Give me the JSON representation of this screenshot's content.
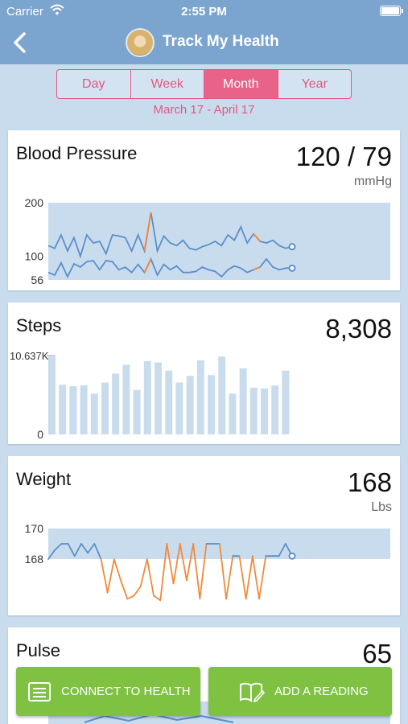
{
  "status_bar": {
    "carrier": "Carrier",
    "time": "2:55 PM"
  },
  "nav": {
    "title": "Track My Health"
  },
  "tabs": [
    {
      "label": "Day",
      "active": false
    },
    {
      "label": "Week",
      "active": false
    },
    {
      "label": "Month",
      "active": true
    },
    {
      "label": "Year",
      "active": false
    }
  ],
  "date_range": "March 17 - April 17",
  "colors": {
    "header": "#7ba4cf",
    "accent": "#e8628a",
    "line": "#5b8ec9",
    "highlight": "#f08a3c",
    "band": "#c9dcee",
    "button": "#7fc241"
  },
  "cards": {
    "blood_pressure": {
      "title": "Blood Pressure",
      "value": "120 / 79",
      "unit": "mmHg"
    },
    "steps": {
      "title": "Steps",
      "value": "8,308"
    },
    "weight": {
      "title": "Weight",
      "value": "168",
      "unit": "Lbs"
    },
    "pulse": {
      "title": "Pulse",
      "value": "65"
    }
  },
  "buttons": {
    "connect": "CONNECT TO HEALTH",
    "add_reading": "ADD A READING"
  },
  "chart_data": [
    {
      "type": "line",
      "y_ticks": [
        "200",
        "100",
        "56"
      ],
      "ylim": [
        56,
        200
      ],
      "band": [
        56,
        200
      ],
      "series": [
        {
          "values": [
            120,
            115,
            140,
            110,
            135,
            100,
            140,
            125,
            128,
            105,
            140,
            138,
            135,
            110,
            140,
            110,
            182,
            110,
            138,
            125,
            120,
            130,
            115,
            112,
            118,
            122,
            128,
            120,
            140,
            130,
            155,
            125,
            142,
            128,
            125,
            130,
            120,
            115,
            118
          ]
        },
        {
          "values": [
            70,
            65,
            88,
            62,
            86,
            80,
            90,
            92,
            75,
            92,
            90,
            75,
            80,
            70,
            85,
            70,
            95,
            65,
            85,
            75,
            82,
            70,
            70,
            72,
            80,
            75,
            72,
            62,
            75,
            82,
            78,
            70,
            75,
            80,
            95,
            80,
            75,
            78,
            78
          ]
        }
      ]
    },
    {
      "type": "bar",
      "y_ticks": [
        "10.637K",
        "0"
      ],
      "ylim": [
        0,
        10637
      ],
      "values": [
        10637,
        6700,
        6500,
        6600,
        5500,
        7000,
        8200,
        9400,
        6000,
        9900,
        9700,
        8600,
        7000,
        7900,
        10000,
        8000,
        10500,
        5500,
        8900,
        6300,
        6200,
        6600,
        8600
      ]
    },
    {
      "type": "line",
      "y_ticks": [
        "170",
        "168"
      ],
      "ylim": [
        164,
        170.5
      ],
      "band": [
        168,
        170
      ],
      "values": [
        168,
        168.6,
        169,
        169,
        168.2,
        169,
        168.4,
        169,
        168,
        165.8,
        168,
        166.6,
        165.4,
        165.6,
        166.2,
        168,
        165.6,
        165.3,
        169,
        166.4,
        169,
        166.6,
        169,
        165.4,
        169,
        169,
        169,
        165.4,
        168.2,
        168.2,
        165.4,
        168.2,
        165.4,
        168.2,
        168.2,
        168.2,
        169,
        168.2
      ]
    }
  ]
}
